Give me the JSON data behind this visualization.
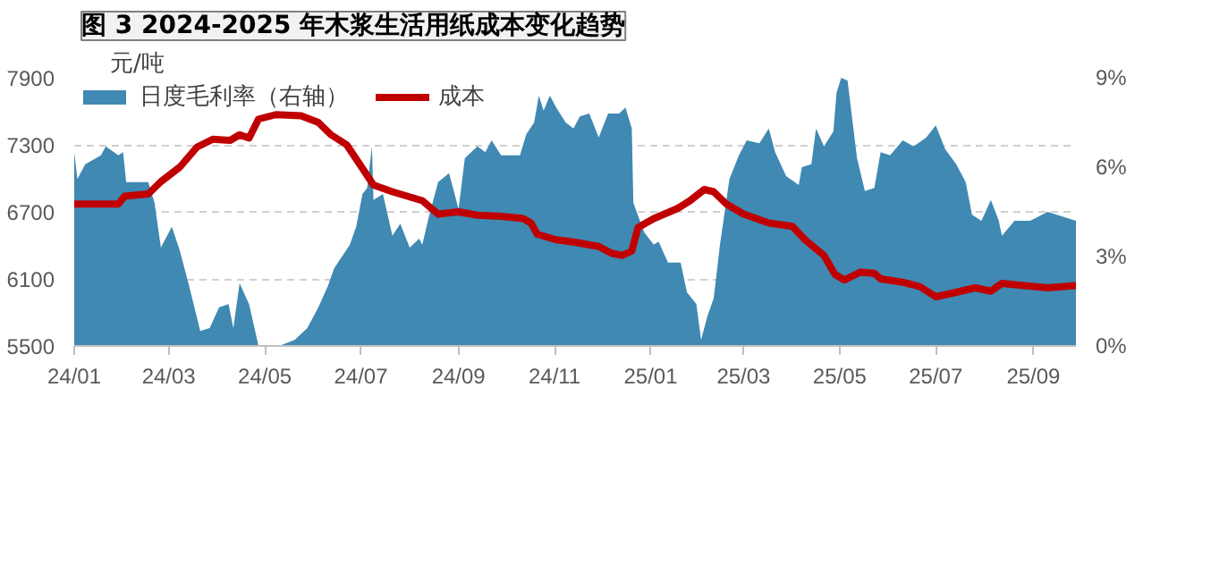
{
  "chart_data": {
    "type": "line",
    "title": "图 3 2024-2025 年木浆生活用纸成本变化趋势",
    "ylabel": "元/吨",
    "xlim": [
      "2024-01-01",
      "2025-09-28"
    ],
    "xticks": [
      {
        "value": "2024-01-01",
        "label": "24/01"
      },
      {
        "value": "2024-03-01",
        "label": "24/03"
      },
      {
        "value": "2024-05-01",
        "label": "24/05"
      },
      {
        "value": "2024-07-01",
        "label": "24/07"
      },
      {
        "value": "2024-09-01",
        "label": "24/09"
      },
      {
        "value": "2024-11-01",
        "label": "24/11"
      },
      {
        "value": "2025-01-01",
        "label": "25/01"
      },
      {
        "value": "2025-03-01",
        "label": "25/03"
      },
      {
        "value": "2025-05-01",
        "label": "25/05"
      },
      {
        "value": "2025-07-01",
        "label": "25/07"
      },
      {
        "value": "2025-09-01",
        "label": "25/09"
      }
    ],
    "ylim": [
      5500,
      7900
    ],
    "yticks": [
      5500,
      6100,
      6700,
      7300,
      7900
    ],
    "y2lim": [
      0,
      9
    ],
    "y2ticks": [
      {
        "value": 0,
        "label": "0%"
      },
      {
        "value": 3,
        "label": "3%"
      },
      {
        "value": 6,
        "label": "6%"
      },
      {
        "value": 9,
        "label": "9%"
      }
    ],
    "grid": "y",
    "legend": "top",
    "line_style": "solid",
    "series": [
      {
        "name": "日度毛利率（右轴）",
        "type": "area",
        "axis": "y2",
        "color": "#3f89b2",
        "x": [
          "2024-01-01",
          "2024-01-03",
          "2024-01-08",
          "2024-01-18",
          "2024-01-21",
          "2024-01-29",
          "2024-02-01",
          "2024-02-03",
          "2024-02-17",
          "2024-02-21",
          "2024-02-25",
          "2024-03-03",
          "2024-03-08",
          "2024-03-14",
          "2024-03-21",
          "2024-03-27",
          "2024-04-02",
          "2024-04-08",
          "2024-04-11",
          "2024-04-15",
          "2024-04-21",
          "2024-04-27",
          "2024-05-10",
          "2024-05-20",
          "2024-05-28",
          "2024-06-04",
          "2024-06-10",
          "2024-06-14",
          "2024-06-24",
          "2024-06-28",
          "2024-07-02",
          "2024-07-05",
          "2024-07-08",
          "2024-07-09",
          "2024-07-15",
          "2024-07-21",
          "2024-07-26",
          "2024-08-01",
          "2024-08-07",
          "2024-08-09",
          "2024-08-13",
          "2024-08-19",
          "2024-08-26",
          "2024-09-01",
          "2024-09-05",
          "2024-09-13",
          "2024-09-18",
          "2024-09-22",
          "2024-09-28",
          "2024-10-10",
          "2024-10-14",
          "2024-10-19",
          "2024-10-22",
          "2024-10-25",
          "2024-10-29",
          "2024-11-02",
          "2024-11-08",
          "2024-11-13",
          "2024-11-17",
          "2024-11-23",
          "2024-11-29",
          "2024-12-05",
          "2024-12-12",
          "2024-12-16",
          "2024-12-20",
          "2024-12-21",
          "2024-12-28",
          "2025-01-03",
          "2025-01-06",
          "2025-01-12",
          "2025-01-20",
          "2025-01-24",
          "2025-01-30",
          "2025-02-02",
          "2025-02-06",
          "2025-02-10",
          "2025-02-14",
          "2025-02-20",
          "2025-02-26",
          "2025-03-03",
          "2025-03-11",
          "2025-03-17",
          "2025-03-21",
          "2025-03-28",
          "2025-04-05",
          "2025-04-07",
          "2025-04-13",
          "2025-04-16",
          "2025-04-21",
          "2025-04-27",
          "2025-04-29",
          "2025-05-02",
          "2025-05-06",
          "2025-05-12",
          "2025-05-17",
          "2025-05-23",
          "2025-05-27",
          "2025-06-02",
          "2025-06-10",
          "2025-06-17",
          "2025-06-25",
          "2025-07-01",
          "2025-07-07",
          "2025-07-14",
          "2025-07-20",
          "2025-07-24",
          "2025-07-30",
          "2025-08-05",
          "2025-08-10",
          "2025-08-12",
          "2025-08-20",
          "2025-08-30",
          "2025-09-10",
          "2025-09-28"
        ],
        "values": [
          6.5,
          5.6,
          6.1,
          6.4,
          6.7,
          6.4,
          6.5,
          5.5,
          5.5,
          4.8,
          3.3,
          4.0,
          3.2,
          2.0,
          0.5,
          0.6,
          1.3,
          1.4,
          0.6,
          2.1,
          1.4,
          0,
          0,
          0.2,
          0.6,
          1.3,
          2.0,
          2.6,
          3.4,
          4.0,
          5.1,
          5.3,
          6.7,
          4.9,
          5.1,
          3.7,
          4.1,
          3.3,
          3.6,
          3.4,
          4.3,
          5.5,
          5.8,
          4.6,
          6.3,
          6.7,
          6.5,
          6.9,
          6.4,
          6.4,
          7.1,
          7.5,
          8.4,
          7.9,
          8.4,
          8.0,
          7.5,
          7.3,
          7.7,
          7.8,
          7.0,
          7.8,
          7.8,
          8.0,
          7.3,
          4.8,
          3.8,
          3.4,
          3.5,
          2.8,
          2.8,
          1.8,
          1.4,
          0.2,
          1.0,
          1.6,
          3.4,
          5.6,
          6.4,
          6.9,
          6.8,
          7.3,
          6.5,
          5.7,
          5.4,
          6.0,
          6.1,
          7.3,
          6.7,
          7.2,
          8.5,
          9.0,
          8.9,
          6.3,
          5.2,
          5.3,
          6.5,
          6.4,
          6.9,
          6.7,
          7.0,
          7.4,
          6.6,
          6.1,
          5.5,
          4.4,
          4.2,
          4.9,
          4.2,
          3.7,
          4.2,
          4.2,
          4.5,
          4.2
        ]
      },
      {
        "name": "成本",
        "color": "#c00000",
        "x": [
          "2024-01-01",
          "2024-01-29",
          "2024-02-02",
          "2024-02-17",
          "2024-02-25",
          "2024-03-08",
          "2024-03-19",
          "2024-03-29",
          "2024-04-09",
          "2024-04-15",
          "2024-04-21",
          "2024-04-27",
          "2024-05-08",
          "2024-05-24",
          "2024-06-04",
          "2024-06-12",
          "2024-06-22",
          "2024-07-01",
          "2024-07-09",
          "2024-07-21",
          "2024-08-09",
          "2024-08-19",
          "2024-09-01",
          "2024-09-13",
          "2024-09-28",
          "2024-10-12",
          "2024-10-17",
          "2024-10-21",
          "2024-11-02",
          "2024-11-13",
          "2024-11-29",
          "2024-12-07",
          "2024-12-14",
          "2024-12-20",
          "2024-12-24",
          "2025-01-03",
          "2025-01-18",
          "2025-01-26",
          "2025-02-04",
          "2025-02-10",
          "2025-02-18",
          "2025-03-01",
          "2025-03-09",
          "2025-03-17",
          "2025-04-01",
          "2025-04-09",
          "2025-04-21",
          "2025-04-28",
          "2025-05-04",
          "2025-05-14",
          "2025-05-23",
          "2025-05-27",
          "2025-06-10",
          "2025-06-21",
          "2025-07-01",
          "2025-07-14",
          "2025-07-26",
          "2025-08-05",
          "2025-08-12",
          "2025-08-26",
          "2025-09-10",
          "2025-09-28"
        ],
        "values": [
          6770,
          6770,
          6840,
          6860,
          6970,
          7100,
          7280,
          7350,
          7340,
          7390,
          7360,
          7530,
          7570,
          7560,
          7500,
          7390,
          7300,
          7110,
          6940,
          6880,
          6800,
          6680,
          6700,
          6670,
          6660,
          6640,
          6600,
          6500,
          6450,
          6430,
          6390,
          6330,
          6310,
          6350,
          6560,
          6640,
          6730,
          6800,
          6900,
          6880,
          6770,
          6680,
          6640,
          6600,
          6570,
          6450,
          6310,
          6140,
          6090,
          6160,
          6150,
          6100,
          6070,
          6030,
          5940,
          5980,
          6020,
          5990,
          6060,
          6040,
          6020,
          6040
        ]
      }
    ]
  }
}
